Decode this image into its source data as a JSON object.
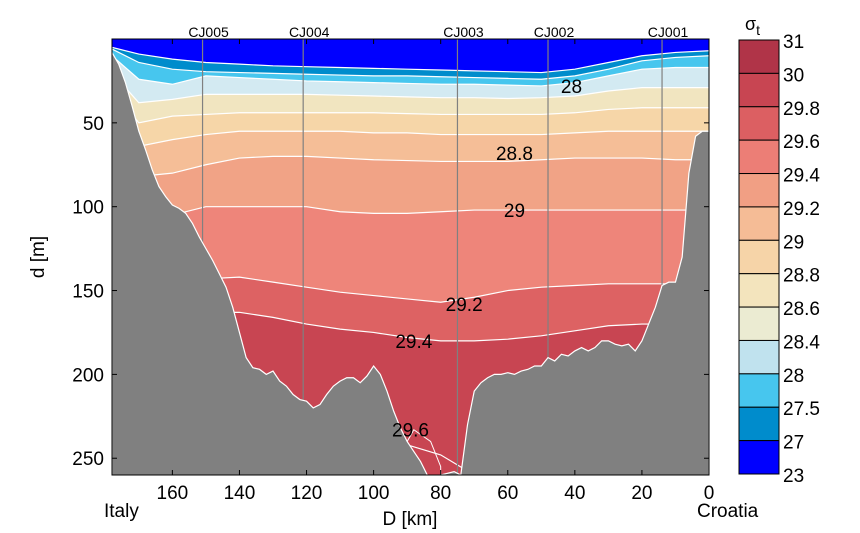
{
  "chart_data": {
    "type": "contour",
    "title": "",
    "xlabel": "D [km]",
    "ylabel": "d [m]",
    "xlim": [
      178,
      0
    ],
    "ylim": [
      0,
      260
    ],
    "x_reversed": true,
    "y_reversed": true,
    "x_ticks": [
      {
        "value": 160,
        "label": "160"
      },
      {
        "value": 140,
        "label": "140"
      },
      {
        "value": 120,
        "label": "120"
      },
      {
        "value": 100,
        "label": "100"
      },
      {
        "value": 80,
        "label": "80"
      },
      {
        "value": 60,
        "label": "60"
      },
      {
        "value": 40,
        "label": "40"
      },
      {
        "value": 20,
        "label": "20"
      },
      {
        "value": 0,
        "label": "0"
      }
    ],
    "y_ticks": [
      {
        "value": 50,
        "label": "50"
      },
      {
        "value": 100,
        "label": "100"
      },
      {
        "value": 150,
        "label": "150"
      },
      {
        "value": 200,
        "label": "200"
      },
      {
        "value": 250,
        "label": "250"
      }
    ],
    "end_labels": {
      "left": "Italy",
      "right": "Croatia"
    },
    "stations": [
      {
        "name": "CJ005",
        "x": 151
      },
      {
        "name": "CJ004",
        "x": 121
      },
      {
        "name": "CJ003",
        "x": 75
      },
      {
        "name": "CJ002",
        "x": 48
      },
      {
        "name": "CJ001",
        "x": 14
      }
    ],
    "colorbar": {
      "title": "σt",
      "title_main": "σ",
      "title_sub": "t",
      "levels": [
        {
          "label": "31",
          "color": "#b03448"
        },
        {
          "label": "30",
          "color": "#c84552"
        },
        {
          "label": "29.8",
          "color": "#dc5f62"
        },
        {
          "label": "29.6",
          "color": "#ec7e76"
        },
        {
          "label": "29.4",
          "color": "#f19f84"
        },
        {
          "label": "29.2",
          "color": "#f5bc96"
        },
        {
          "label": "29",
          "color": "#f6d4a8"
        },
        {
          "label": "28.8",
          "color": "#f3e4bd"
        },
        {
          "label": "28.6",
          "color": "#ebebd2"
        },
        {
          "label": "28.4",
          "color": "#c0e2ee"
        },
        {
          "label": "28",
          "color": "#47c6ee"
        },
        {
          "label": "27.5",
          "color": "#008ccc"
        },
        {
          "label": "27",
          "color": "#0000ff"
        },
        {
          "label": "23",
          "color": null
        }
      ]
    },
    "contour_labels": [
      {
        "text": "28",
        "x": 41,
        "y": 28
      },
      {
        "text": "28.8",
        "x": 58,
        "y": 68
      },
      {
        "text": "29",
        "x": 58,
        "y": 102
      },
      {
        "text": "29.2",
        "x": 73,
        "y": 158
      },
      {
        "text": "29.4",
        "x": 88,
        "y": 180
      },
      {
        "text": "29.6",
        "x": 89,
        "y": 233
      }
    ],
    "bands": [
      {
        "name": "27-27.5",
        "color": "#0000ff"
      },
      {
        "name": "27.5-28",
        "color": "#008ccc"
      },
      {
        "name": "28-28.4",
        "color": "#47c6ee"
      },
      {
        "name": "28.4-28.6",
        "color": "#d3eaf2"
      },
      {
        "name": "28.6-28.8",
        "color": "#f1e5c0"
      },
      {
        "name": "28.8-29",
        "color": "#f6d6a8"
      },
      {
        "name": "29-29.2",
        "color": "#f5be97"
      },
      {
        "name": "29.2-29.4",
        "color": "#f1a386"
      },
      {
        "name": "29.4-29.6",
        "color": "#ee857a"
      },
      {
        "name": "29.6-29.8",
        "color": "#dd6263"
      },
      {
        "name": "29.8-30",
        "color": "#c84552"
      }
    ],
    "bathymetry_color": "#808080"
  }
}
